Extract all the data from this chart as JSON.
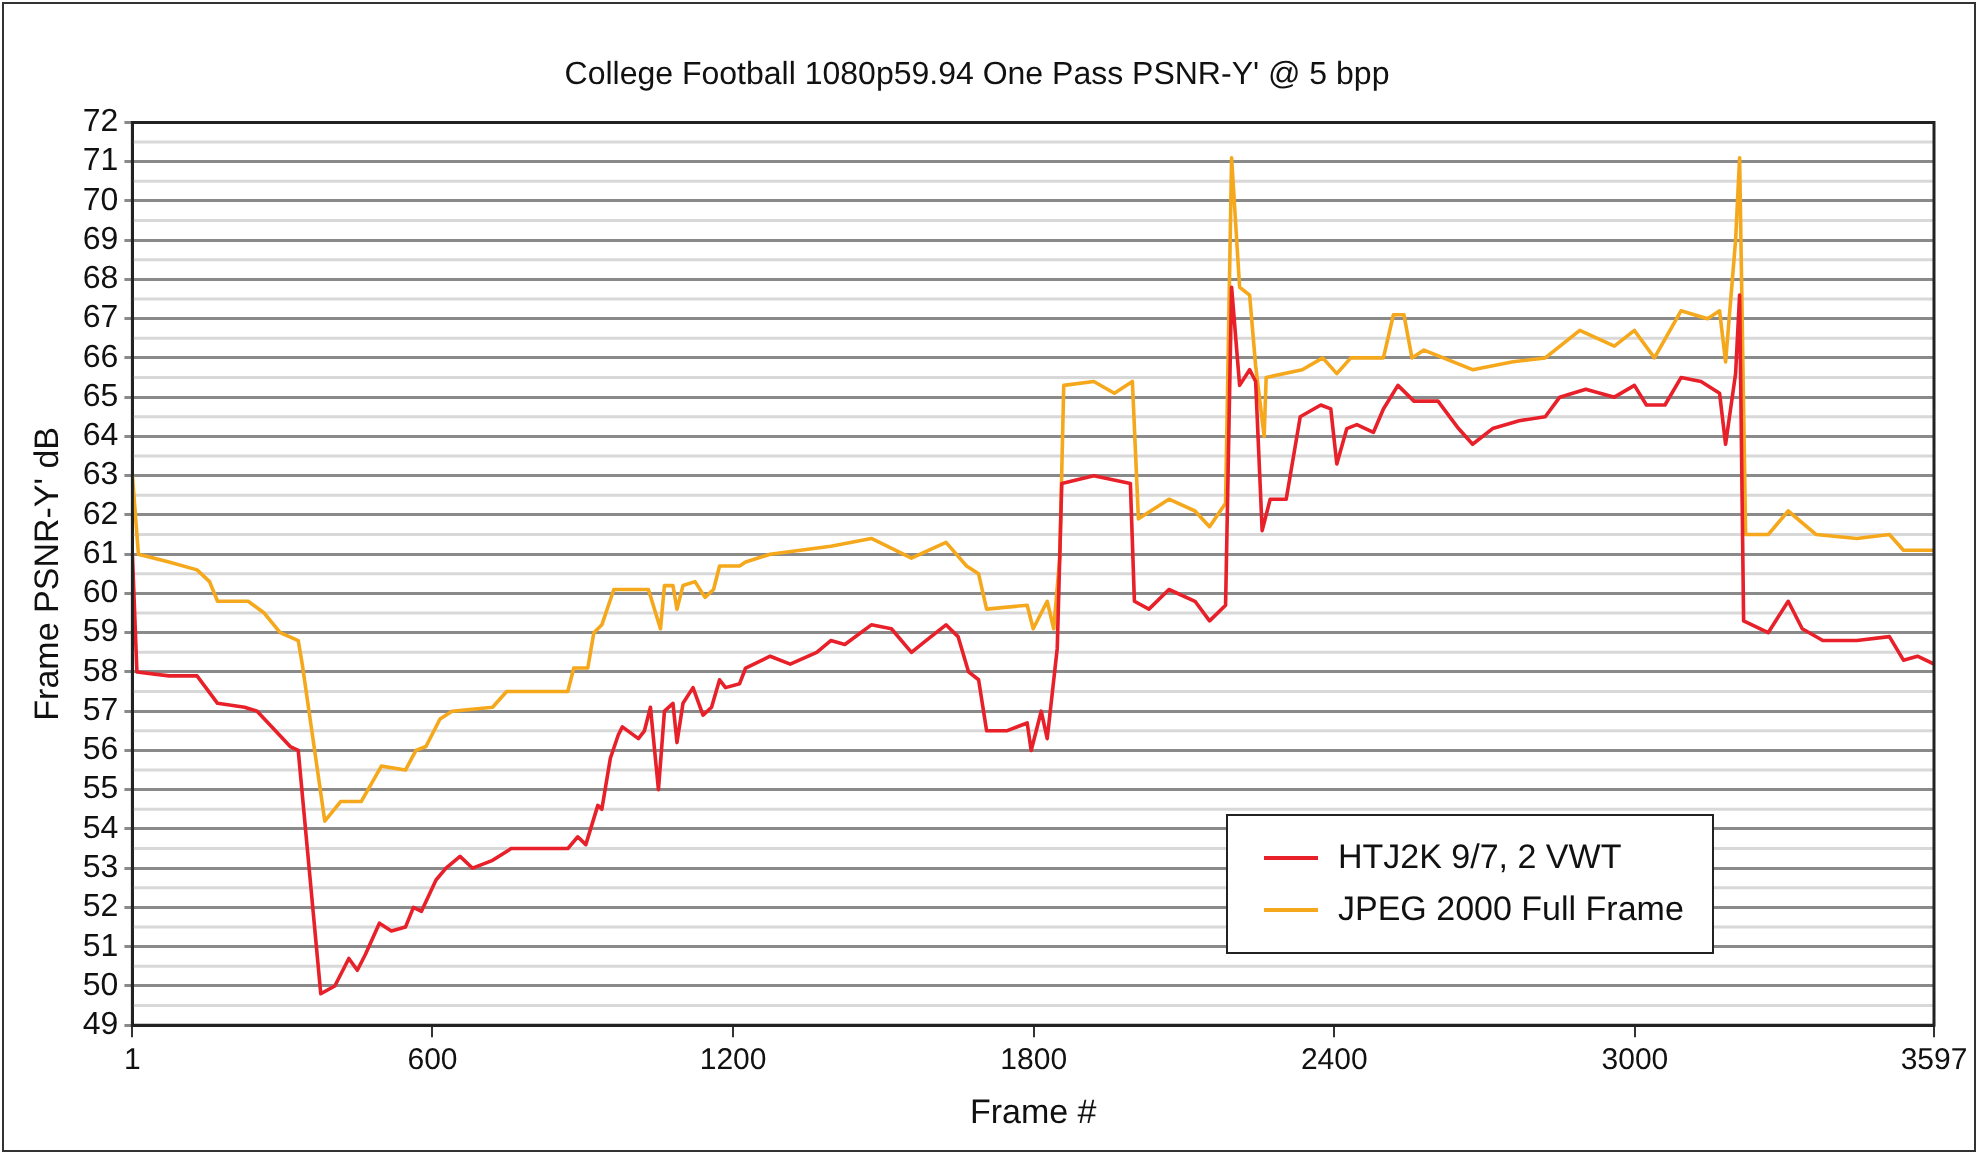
{
  "chart_data": {
    "type": "line",
    "title": "College Football 1080p59.94 One Pass PSNR-Y' @ 5 bpp",
    "xlabel": "Frame #",
    "ylabel": "Frame PSNR-Y' dB",
    "xlim": [
      1,
      3597
    ],
    "xticks": [
      1,
      600,
      1200,
      1800,
      2400,
      3000,
      3597
    ],
    "ylim": [
      49,
      72
    ],
    "yticks": [
      49,
      50,
      51,
      52,
      53,
      54,
      55,
      56,
      57,
      58,
      59,
      60,
      61,
      62,
      63,
      64,
      65,
      66,
      67,
      68,
      69,
      70,
      71,
      72
    ],
    "grid": "y",
    "legend": "bottom right",
    "marker": "none",
    "line_style": "solid",
    "series": [
      {
        "name": "HTJ2K 9/7, 2 VWT",
        "color": "#e8202a",
        "x": [
          1,
          10,
          74,
          130,
          171,
          225,
          250,
          316,
          332,
          377,
          405,
          433,
          450,
          466,
          494,
          518,
          546,
          562,
          578,
          607,
          627,
          655,
          680,
          720,
          757,
          870,
          890,
          906,
          930,
          938,
          955,
          971,
          979,
          1011,
          1023,
          1035,
          1051,
          1063,
          1080,
          1088,
          1100,
          1120,
          1140,
          1157,
          1173,
          1185,
          1213,
          1225,
          1274,
          1314,
          1367,
          1395,
          1423,
          1476,
          1516,
          1556,
          1585,
          1625,
          1649,
          1670,
          1690,
          1706,
          1746,
          1787,
          1795,
          1815,
          1827,
          1847,
          1856,
          1920,
          1993,
          2001,
          2030,
          2070,
          2122,
          2151,
          2183,
          2195,
          2211,
          2231,
          2243,
          2256,
          2272,
          2304,
          2332,
          2373,
          2393,
          2405,
          2425,
          2445,
          2478,
          2498,
          2527,
          2559,
          2607,
          2648,
          2676,
          2716,
          2769,
          2821,
          2850,
          2902,
          2959,
          2999,
          3023,
          3060,
          3092,
          3132,
          3169,
          3181,
          3201,
          3209,
          3217,
          3266,
          3306,
          3334,
          3375,
          3443,
          3508,
          3536,
          3564,
          3597
        ],
        "values": [
          61,
          58,
          57.9,
          57.9,
          57.2,
          57.1,
          57,
          56.1,
          56,
          49.8,
          50,
          50.7,
          50.4,
          50.8,
          51.6,
          51.4,
          51.5,
          52,
          51.9,
          52.7,
          53,
          53.3,
          53,
          53.2,
          53.5,
          53.5,
          53.8,
          53.6,
          54.6,
          54.5,
          55.8,
          56.4,
          56.6,
          56.3,
          56.5,
          57.1,
          55,
          57,
          57.2,
          56.2,
          57.2,
          57.6,
          56.9,
          57.1,
          57.8,
          57.6,
          57.7,
          58.1,
          58.4,
          58.2,
          58.5,
          58.8,
          58.7,
          59.2,
          59.1,
          58.5,
          58.8,
          59.2,
          58.9,
          58,
          57.8,
          56.5,
          56.5,
          56.7,
          56,
          57,
          56.3,
          58.6,
          62.8,
          63,
          62.8,
          59.8,
          59.6,
          60.1,
          59.8,
          59.3,
          59.7,
          67.8,
          65.3,
          65.7,
          65.4,
          61.6,
          62.4,
          62.4,
          64.5,
          64.8,
          64.7,
          63.3,
          64.2,
          64.3,
          64.1,
          64.7,
          65.3,
          64.9,
          64.9,
          64.2,
          63.8,
          64.2,
          64.4,
          64.5,
          65,
          65.2,
          65,
          65.3,
          64.8,
          64.8,
          65.5,
          65.4,
          65.1,
          63.8,
          65.6,
          67.6,
          59.3,
          59,
          59.8,
          59.1,
          58.8,
          58.8,
          58.9,
          58.3,
          58.4,
          58.2
        ]
      },
      {
        "name": "JPEG 2000 Full Frame",
        "color": "#f5a81c",
        "x": [
          1,
          13,
          74,
          130,
          155,
          171,
          232,
          264,
          296,
          332,
          340,
          385,
          417,
          458,
          498,
          546,
          567,
          587,
          615,
          639,
          720,
          748,
          870,
          882,
          910,
          922,
          938,
          962,
          1031,
          1055,
          1063,
          1080,
          1088,
          1100,
          1124,
          1144,
          1161,
          1173,
          1213,
          1225,
          1274,
          1395,
          1476,
          1556,
          1625,
          1666,
          1690,
          1706,
          1787,
          1799,
          1827,
          1840,
          1852,
          1860,
          1920,
          1961,
          1997,
          2009,
          2070,
          2122,
          2151,
          2183,
          2195,
          2211,
          2231,
          2243,
          2260,
          2264,
          2336,
          2377,
          2405,
          2433,
          2498,
          2518,
          2539,
          2555,
          2579,
          2676,
          2757,
          2821,
          2890,
          2959,
          2999,
          3039,
          3092,
          3145,
          3169,
          3181,
          3201,
          3209,
          3221,
          3266,
          3306,
          3362,
          3443,
          3508,
          3536,
          3597
        ],
        "values": [
          63,
          61,
          60.8,
          60.6,
          60.3,
          59.8,
          59.8,
          59.5,
          59,
          58.8,
          58.2,
          54.2,
          54.7,
          54.7,
          55.6,
          55.5,
          56,
          56.1,
          56.8,
          57,
          57.1,
          57.5,
          57.5,
          58.1,
          58.1,
          59,
          59.2,
          60.1,
          60.1,
          59.1,
          60.2,
          60.2,
          59.6,
          60.2,
          60.3,
          59.9,
          60.1,
          60.7,
          60.7,
          60.8,
          61,
          61.2,
          61.4,
          60.9,
          61.3,
          60.7,
          60.5,
          59.6,
          59.7,
          59.1,
          59.8,
          59.1,
          60.9,
          65.3,
          65.4,
          65.1,
          65.4,
          61.9,
          62.4,
          62.1,
          61.7,
          62.3,
          71.1,
          67.8,
          67.6,
          65.8,
          64,
          65.5,
          65.7,
          66,
          65.6,
          66,
          66,
          67.1,
          67.1,
          66,
          66.2,
          65.7,
          65.9,
          66,
          66.7,
          66.3,
          66.7,
          66,
          67.2,
          67,
          67.2,
          65.9,
          69,
          71.1,
          61.5,
          61.5,
          62.1,
          61.5,
          61.4,
          61.5,
          61.1,
          61.1
        ]
      }
    ]
  }
}
